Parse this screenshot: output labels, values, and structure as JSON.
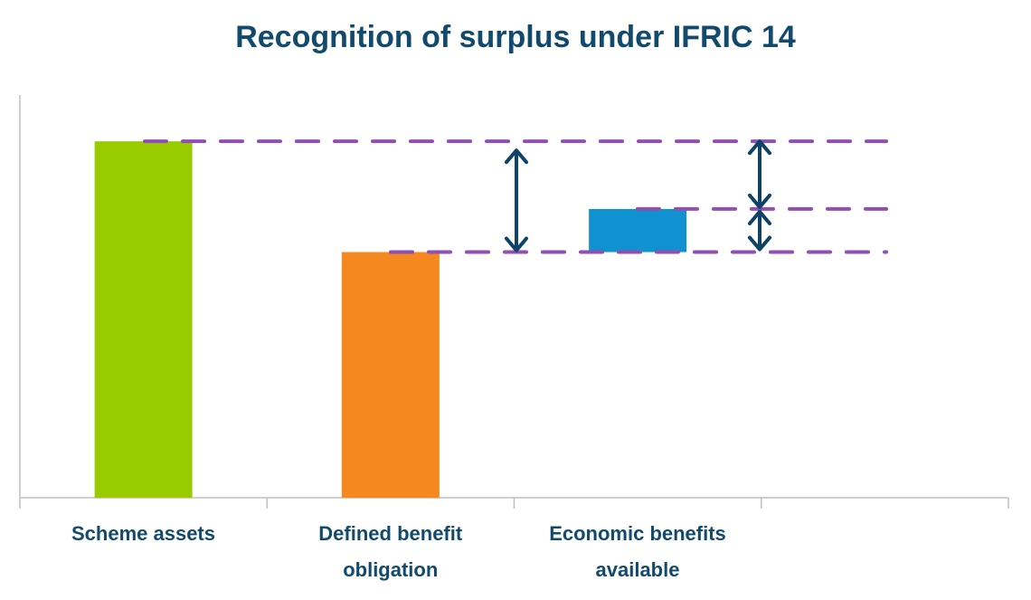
{
  "chart_data": {
    "type": "bar",
    "subtype": "waterfall",
    "title": "Recognition of surplus under IFRIC 14",
    "categories": [
      "Scheme assets",
      "Defined benefit obligation",
      "Economic benefits available"
    ],
    "category_lines": [
      [
        "Scheme assets"
      ],
      [
        "Defined benefit",
        "obligation"
      ],
      [
        "Economic benefits",
        "available"
      ]
    ],
    "series": [
      {
        "name": "Scheme assets",
        "base": 0,
        "value": 88.5,
        "color": "#99cc00"
      },
      {
        "name": "Defined benefit obligation",
        "base": 0,
        "value": 61,
        "color": "#f5881f"
      },
      {
        "name": "Economic benefits available",
        "base": 61,
        "value": 71.7,
        "color": "#1192d0"
      }
    ],
    "reference_lines": [
      88.5,
      71.7,
      61
    ],
    "reference_line_color": "#9050b0",
    "arrow_color": "#0e4266",
    "ylim": [
      0,
      100
    ],
    "xlabel": "",
    "ylabel": "",
    "grid": false,
    "legend": "none"
  }
}
